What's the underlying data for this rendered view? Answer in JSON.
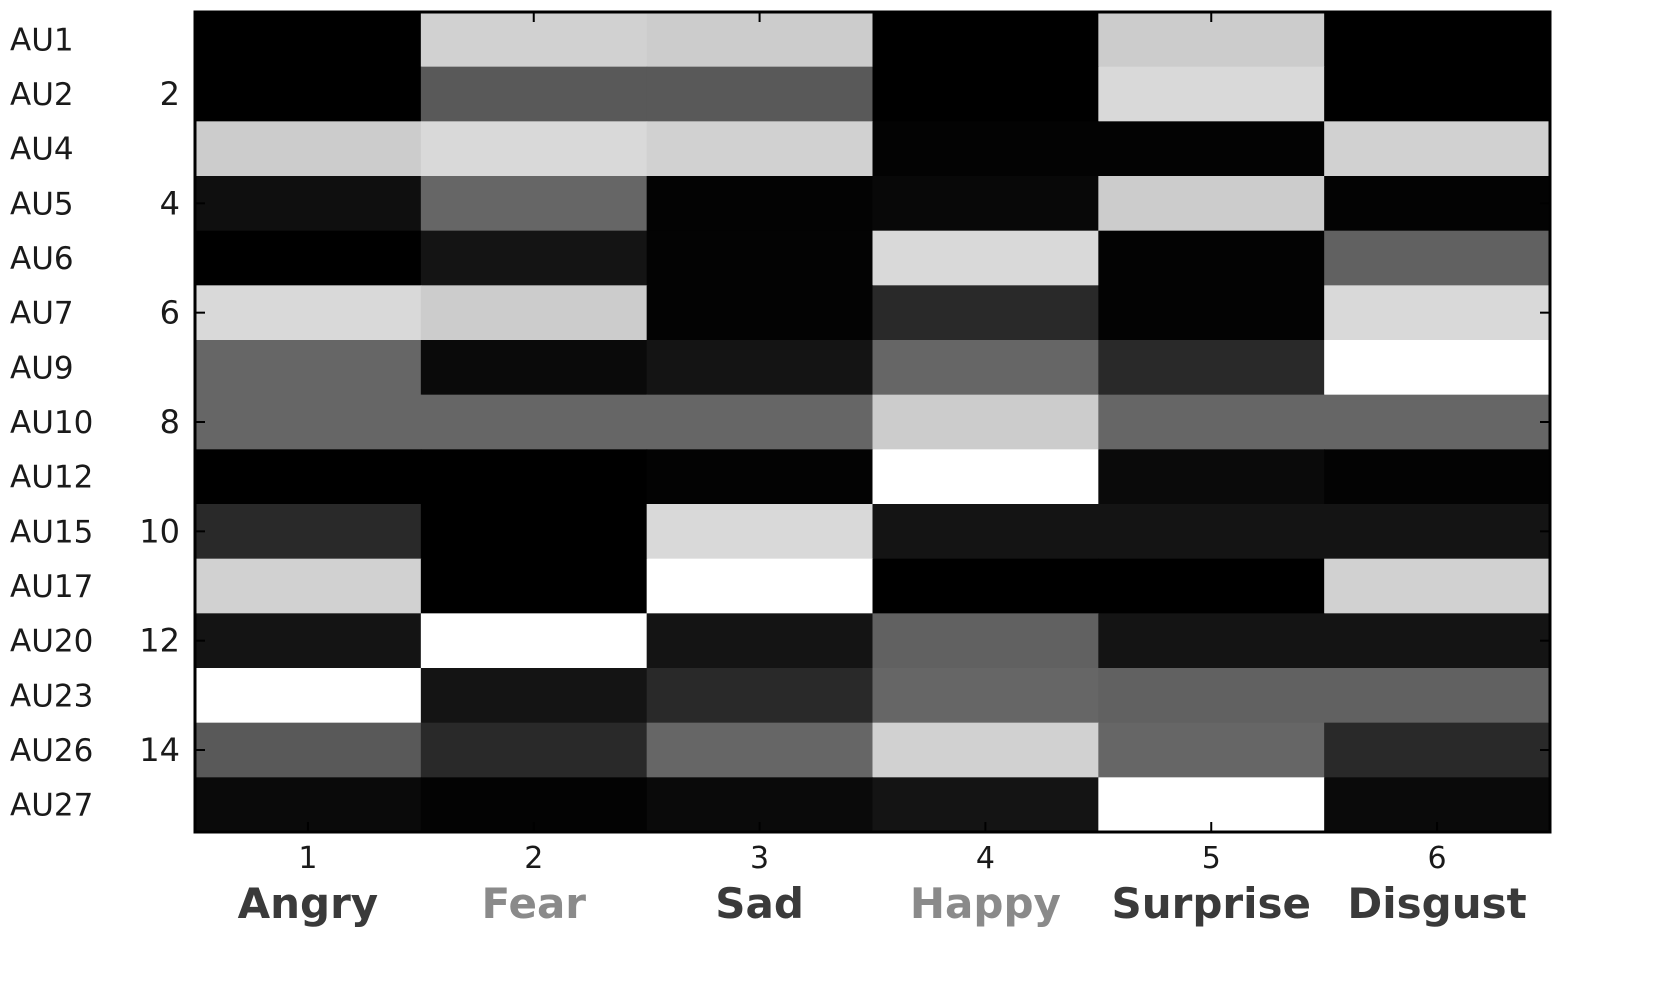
{
  "chart_data": {
    "type": "heatmap",
    "row_labels": [
      "AU1",
      "AU2",
      "AU4",
      "AU5",
      "AU6",
      "AU7",
      "AU9",
      "AU10",
      "AU12",
      "AU15",
      "AU17",
      "AU20",
      "AU23",
      "AU26",
      "AU27"
    ],
    "y_ticks": [
      "2",
      "4",
      "6",
      "8",
      "10",
      "12",
      "14"
    ],
    "y_tick_rows": [
      2,
      4,
      6,
      8,
      10,
      12,
      14
    ],
    "x_ticks": [
      "1",
      "2",
      "3",
      "4",
      "5",
      "6"
    ],
    "categories": [
      "Angry",
      "Fear",
      "Sad",
      "Happy",
      "Surprise",
      "Disgust"
    ],
    "category_colors": [
      "#3a3a3a",
      "#8a8a8a",
      "#3a3a3a",
      "#8a8a8a",
      "#3a3a3a",
      "#3a3a3a"
    ],
    "value_range": [
      0,
      1
    ],
    "colormap": "gray",
    "grid": false,
    "values": [
      [
        0.0,
        0.82,
        0.8,
        0.0,
        0.8,
        0.0
      ],
      [
        0.0,
        0.35,
        0.35,
        0.0,
        0.85,
        0.0
      ],
      [
        0.8,
        0.85,
        0.82,
        0.01,
        0.01,
        0.82
      ],
      [
        0.06,
        0.4,
        0.01,
        0.03,
        0.8,
        0.01
      ],
      [
        0.0,
        0.08,
        0.01,
        0.85,
        0.01,
        0.38
      ],
      [
        0.85,
        0.8,
        0.01,
        0.16,
        0.01,
        0.85
      ],
      [
        0.4,
        0.04,
        0.08,
        0.4,
        0.16,
        1.0
      ],
      [
        0.4,
        0.4,
        0.4,
        0.8,
        0.4,
        0.4
      ],
      [
        0.0,
        0.0,
        0.01,
        1.0,
        0.04,
        0.01
      ],
      [
        0.16,
        0.0,
        0.85,
        0.08,
        0.08,
        0.08
      ],
      [
        0.82,
        0.0,
        1.0,
        0.0,
        0.0,
        0.82
      ],
      [
        0.08,
        1.0,
        0.08,
        0.38,
        0.08,
        0.08
      ],
      [
        1.0,
        0.08,
        0.16,
        0.4,
        0.38,
        0.38
      ],
      [
        0.35,
        0.16,
        0.4,
        0.82,
        0.4,
        0.16
      ],
      [
        0.04,
        0.01,
        0.04,
        0.08,
        1.0,
        0.04
      ]
    ]
  }
}
